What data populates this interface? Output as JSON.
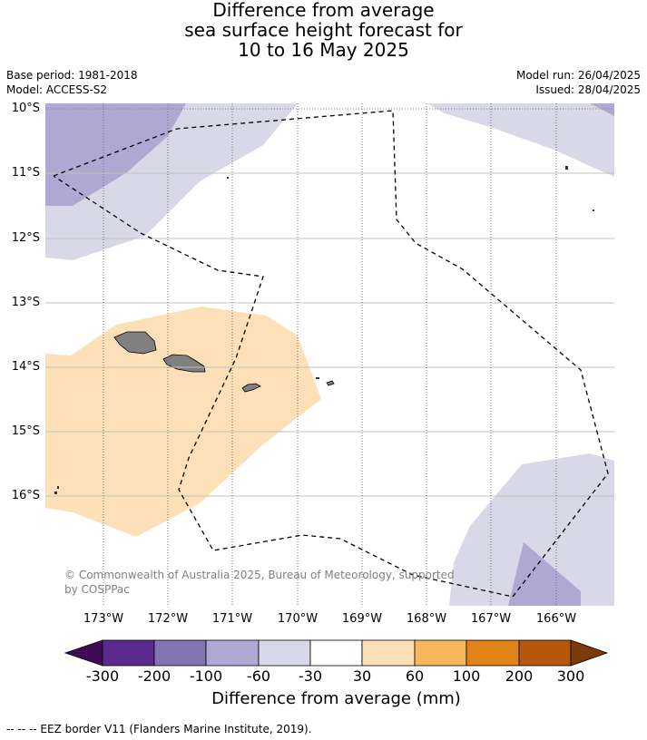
{
  "title_lines": [
    "Difference from average",
    "sea surface height forecast for",
    "10 to 16 May 2025"
  ],
  "meta_left": {
    "base_period": "Base period: 1981-2018",
    "model": "Model: ACCESS-S2"
  },
  "meta_right": {
    "model_run": "Model run: 26/04/2025",
    "issued": "Issued: 28/04/2025"
  },
  "map": {
    "lat_labels": [
      "10°S",
      "11°S",
      "12°S",
      "13°S",
      "14°S",
      "15°S",
      "16°S"
    ],
    "lon_labels": [
      "173°W",
      "172°W",
      "171°W",
      "170°W",
      "169°W",
      "168°W",
      "167°W",
      "166°W"
    ],
    "extent": {
      "lon": [
        -173.9,
        -165.1
      ],
      "lat": [
        -17.7,
        -9.95
      ]
    }
  },
  "copyright": "© Commonwealth of Australia 2025, Bureau of Meteorology, supported by COSPPac",
  "colorbar": {
    "ticks": [
      "-300",
      "-200",
      "-100",
      "-60",
      "-30",
      "30",
      "60",
      "100",
      "200",
      "300"
    ],
    "colors": [
      "#3f0a57",
      "#5b2a8c",
      "#8474b2",
      "#afa8d3",
      "#d8d8e9",
      "#ffffff",
      "#fde0b8",
      "#f8b65d",
      "#e2831a",
      "#b5580b",
      "#7b3a0a"
    ],
    "title": "Difference from average (mm)"
  },
  "footer": "--  --  -- EEZ border V11 (Flanders Marine Institute, 2019)."
}
